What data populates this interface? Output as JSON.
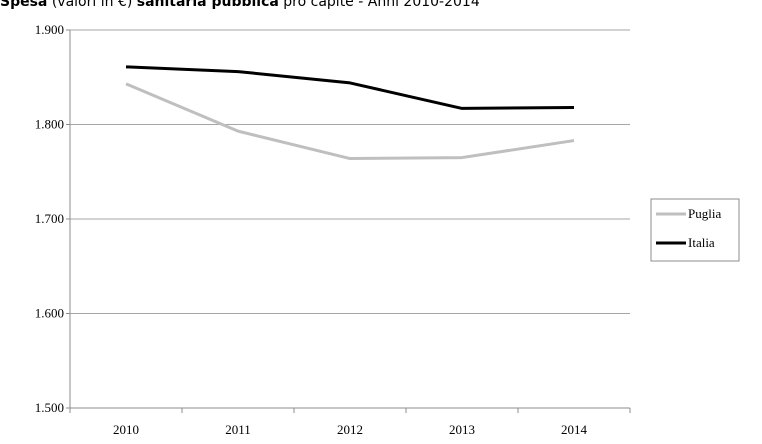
{
  "title_parts": {
    "p1": "Spesa",
    "p2": " (valori in €) ",
    "p3": "sanitaria pubblica",
    "p4": " pro capite - Anni 2010-2014"
  },
  "chart_data": {
    "type": "line",
    "title": "Spesa (valori in €) sanitaria pubblica pro capite - Anni 2010-2014",
    "categories": [
      "2010",
      "2011",
      "2012",
      "2013",
      "2014"
    ],
    "series": [
      {
        "name": "Puglia",
        "color": "#bfbfbf",
        "values": [
          1843,
          1793,
          1764,
          1765,
          1783
        ]
      },
      {
        "name": "Italia",
        "color": "#000000",
        "values": [
          1861,
          1856,
          1844,
          1817,
          1818
        ]
      }
    ],
    "y_ticks": [
      "1.500",
      "1.600",
      "1.700",
      "1.800",
      "1.900"
    ],
    "ylim": [
      1500,
      1900
    ],
    "grid": true,
    "legend": "right"
  }
}
